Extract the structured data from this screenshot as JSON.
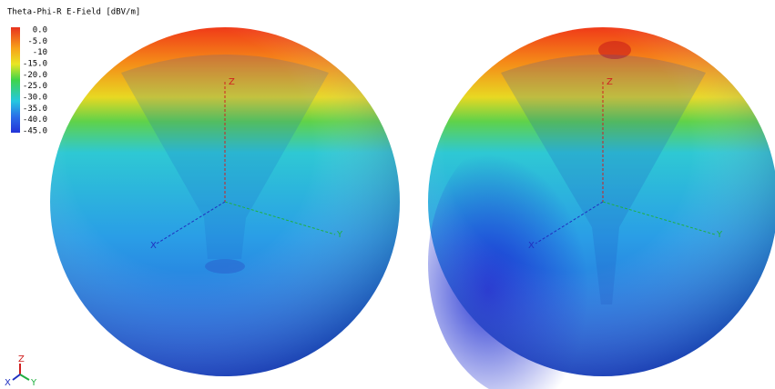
{
  "legend": {
    "title": "Theta-Phi-R E-Field [dBV/m]",
    "labels": [
      "0.0",
      "-5.0",
      "-10",
      "-15.0",
      "-20.0",
      "-25.0",
      "-30.0",
      "-35.0",
      "-40.0",
      "-45.0"
    ]
  },
  "views": [
    {
      "axes": {
        "x": "X",
        "y": "Y",
        "z": "Z"
      }
    },
    {
      "axes": {
        "x": "X",
        "y": "Y",
        "z": "Z"
      }
    }
  ],
  "triad": {
    "x": "X",
    "y": "Y",
    "z": "Z"
  }
}
